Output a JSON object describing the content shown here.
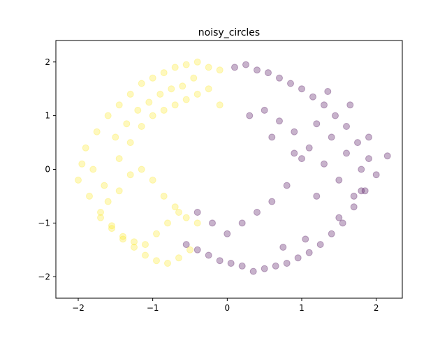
{
  "chart_data": {
    "type": "scatter",
    "title": "noisy_circles",
    "xlabel": "",
    "ylabel": "",
    "xlim": [
      -2.3,
      2.35
    ],
    "ylim": [
      -2.4,
      2.4
    ],
    "xticks": [
      -2,
      -1,
      0,
      1,
      2
    ],
    "yticks": [
      -2,
      -1,
      0,
      1,
      2
    ],
    "xtick_labels": [
      "−2",
      "−1",
      "0",
      "1",
      "2"
    ],
    "ytick_labels": [
      "−2",
      "−1",
      "0",
      "1",
      "2"
    ],
    "grid": false,
    "legend": "none",
    "marker_alpha": 0.3,
    "series": [
      {
        "color": "#fde725",
        "x": [
          -1.9,
          -1.75,
          -1.6,
          -1.45,
          -1.3,
          -1.15,
          -1.0,
          -0.85,
          -0.7,
          -0.55,
          -0.4,
          -0.25,
          -0.1,
          -2.0,
          -1.85,
          -1.7,
          -1.55,
          -1.4,
          -1.25,
          -1.1,
          -0.95,
          -0.8,
          -0.65,
          -0.5,
          -1.95,
          -1.8,
          -1.65,
          -1.5,
          -1.35,
          -1.2,
          -1.05,
          -0.9,
          -0.75,
          -0.6,
          -0.45,
          -1.7,
          -1.55,
          -1.4,
          -1.25,
          -1.1,
          -0.95,
          -0.8,
          -0.65,
          -1.45,
          -1.3,
          -1.15,
          -1.0,
          -0.85,
          -0.7,
          -0.55,
          -0.4,
          -0.25,
          -0.1,
          -1.6,
          -1.45,
          -1.3,
          -1.15,
          -1.0,
          -0.85,
          -0.7,
          -0.55,
          -0.4
        ],
        "y": [
          0.4,
          0.7,
          1.0,
          1.2,
          1.4,
          1.6,
          1.7,
          1.8,
          1.9,
          1.95,
          2.0,
          1.9,
          1.85,
          -0.2,
          -0.5,
          -0.8,
          -1.05,
          -1.25,
          -1.45,
          -1.6,
          -1.7,
          -1.75,
          -1.65,
          -1.5,
          0.1,
          0.0,
          -0.3,
          0.6,
          0.85,
          1.1,
          1.25,
          1.4,
          1.5,
          1.55,
          1.7,
          -0.9,
          -1.1,
          -1.3,
          -1.35,
          -1.4,
          -1.2,
          -1.0,
          -0.8,
          0.2,
          0.5,
          0.8,
          1.0,
          1.1,
          1.2,
          1.3,
          1.4,
          1.5,
          1.2,
          -0.6,
          -0.4,
          -0.1,
          0.0,
          -0.2,
          -0.5,
          -0.7,
          -0.9,
          -1.0
        ]
      },
      {
        "color": "#440154",
        "x": [
          0.1,
          0.25,
          0.4,
          0.55,
          0.7,
          0.85,
          1.0,
          1.15,
          1.3,
          1.45,
          1.6,
          1.75,
          1.9,
          2.0,
          1.85,
          1.7,
          1.55,
          1.4,
          1.25,
          1.1,
          0.95,
          0.8,
          0.65,
          0.5,
          0.35,
          0.2,
          0.05,
          -0.1,
          -0.25,
          -0.4,
          -0.55,
          0.3,
          0.5,
          0.7,
          0.9,
          1.1,
          1.3,
          1.5,
          1.7,
          1.8,
          1.6,
          1.4,
          1.2,
          1.0,
          0.8,
          0.6,
          0.4,
          0.2,
          0.0,
          -0.2,
          -0.4,
          0.6,
          0.9,
          1.2,
          1.5,
          1.8,
          2.15,
          1.9,
          1.65,
          1.35,
          1.05,
          0.75
        ],
        "y": [
          1.9,
          1.95,
          1.85,
          1.8,
          1.7,
          1.6,
          1.5,
          1.35,
          1.2,
          1.0,
          0.8,
          0.5,
          0.2,
          -0.1,
          -0.4,
          -0.7,
          -1.0,
          -1.2,
          -1.4,
          -1.55,
          -1.65,
          -1.75,
          -1.8,
          -1.85,
          -1.9,
          -1.8,
          -1.75,
          -1.7,
          -1.6,
          -1.5,
          -1.4,
          1.0,
          1.1,
          0.9,
          0.7,
          0.4,
          0.1,
          -0.2,
          -0.5,
          0.0,
          0.3,
          0.6,
          0.85,
          0.2,
          -0.3,
          -0.6,
          -0.8,
          -1.0,
          -1.2,
          -1.0,
          -0.8,
          0.6,
          0.3,
          -0.5,
          -0.9,
          -0.4,
          0.25,
          0.6,
          1.2,
          1.45,
          -1.3,
          -1.45
        ]
      }
    ]
  }
}
